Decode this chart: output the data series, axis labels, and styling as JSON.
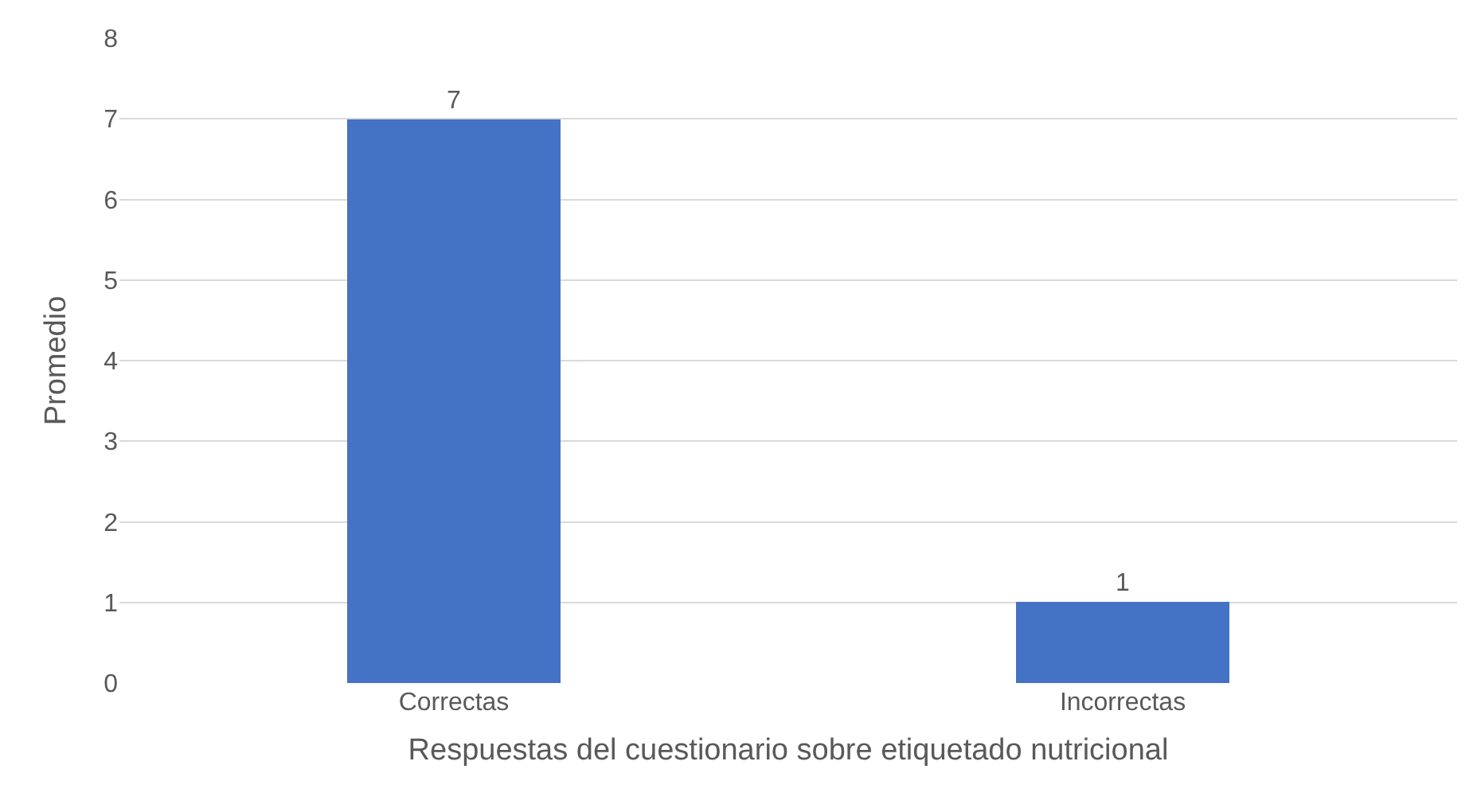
{
  "chart_data": {
    "type": "bar",
    "xlabel": "Respuestas del cuestionario sobre etiquetado nutricional",
    "ylabel": "Promedio",
    "categories": [
      "Correctas",
      "Incorrectas"
    ],
    "values": [
      7,
      1
    ],
    "color": "#4472c4",
    "ylim": [
      0,
      8
    ],
    "yticks": [
      0,
      1,
      2,
      3,
      4,
      5,
      6,
      7,
      8
    ],
    "grid": "y",
    "data_labels": true
  }
}
